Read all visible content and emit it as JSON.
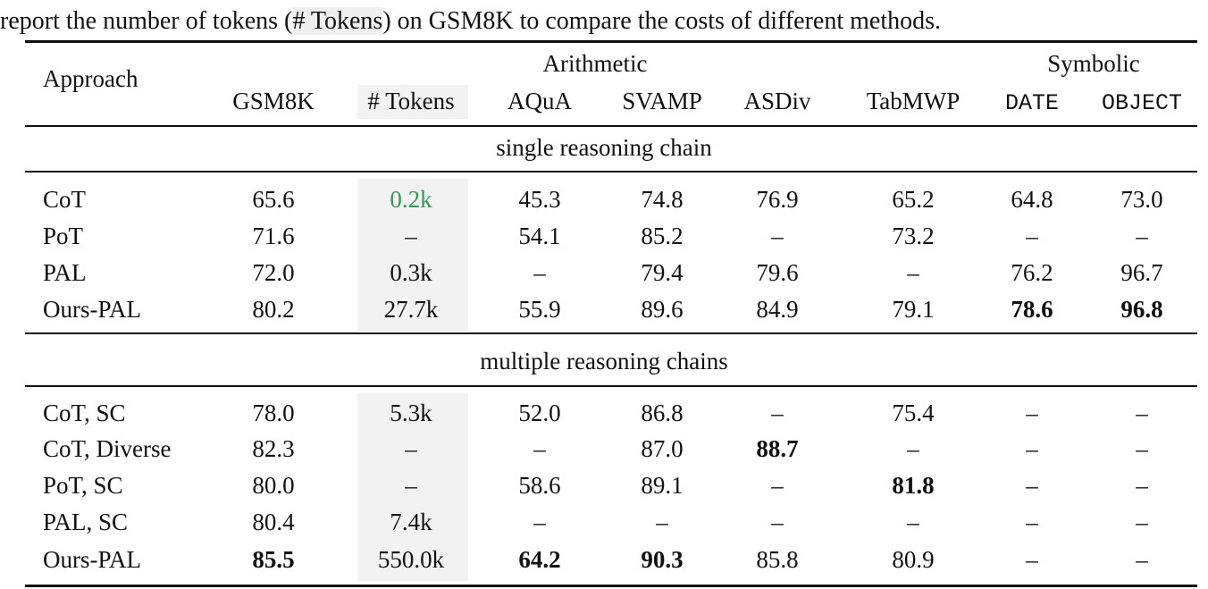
{
  "caption": {
    "before": "report the number of tokens (",
    "highlight": "# Tokens",
    "after": ") on GSM8K to compare the costs of different methods."
  },
  "header": {
    "approach": "Approach",
    "group_arithmetic": "Arithmetic",
    "group_symbolic": "Symbolic",
    "columns": [
      "GSM8K",
      "# Tokens",
      "AQuA",
      "SVAMP",
      "ASDiv",
      "TabMWP",
      "DATE",
      "OBJECT"
    ]
  },
  "sections": [
    {
      "label": "single reasoning chain",
      "rows": [
        {
          "approach": "CoT",
          "cells": [
            "65.6",
            "0.2k",
            "45.3",
            "74.8",
            "76.9",
            "65.2",
            "64.8",
            "73.0"
          ],
          "bold": [],
          "green": [
            1
          ]
        },
        {
          "approach": "PoT",
          "cells": [
            "71.6",
            "–",
            "54.1",
            "85.2",
            "–",
            "73.2",
            "–",
            "–"
          ],
          "bold": [],
          "green": []
        },
        {
          "approach": "PAL",
          "cells": [
            "72.0",
            "0.3k",
            "–",
            "79.4",
            "79.6",
            "–",
            "76.2",
            "96.7"
          ],
          "bold": [],
          "green": []
        },
        {
          "approach": "Ours-PAL",
          "cells": [
            "80.2",
            "27.7k",
            "55.9",
            "89.6",
            "84.9",
            "79.1",
            "78.6",
            "96.8"
          ],
          "bold": [
            6,
            7
          ],
          "green": []
        }
      ]
    },
    {
      "label": "multiple reasoning chains",
      "rows": [
        {
          "approach": "CoT, SC",
          "cells": [
            "78.0",
            "5.3k",
            "52.0",
            "86.8",
            "–",
            "75.4",
            "–",
            "–"
          ],
          "bold": [],
          "green": []
        },
        {
          "approach": "CoT, Diverse",
          "cells": [
            "82.3",
            "–",
            "–",
            "87.0",
            "88.7",
            "–",
            "–",
            "–"
          ],
          "bold": [
            4
          ],
          "green": []
        },
        {
          "approach": "PoT, SC",
          "cells": [
            "80.0",
            "–",
            "58.6",
            "89.1",
            "–",
            "81.8",
            "–",
            "–"
          ],
          "bold": [
            5
          ],
          "green": []
        },
        {
          "approach": "PAL, SC",
          "cells": [
            "80.4",
            "7.4k",
            "–",
            "–",
            "–",
            "–",
            "–",
            "–"
          ],
          "bold": [],
          "green": []
        },
        {
          "approach": "Ours-PAL",
          "cells": [
            "85.5",
            "550.0k",
            "64.2",
            "90.3",
            "85.8",
            "80.9",
            "–",
            "–"
          ],
          "bold": [
            0,
            2,
            3
          ],
          "green": []
        }
      ]
    }
  ],
  "colors": {
    "highlight": "#2e9a55",
    "shade": "#f2f2f2"
  }
}
